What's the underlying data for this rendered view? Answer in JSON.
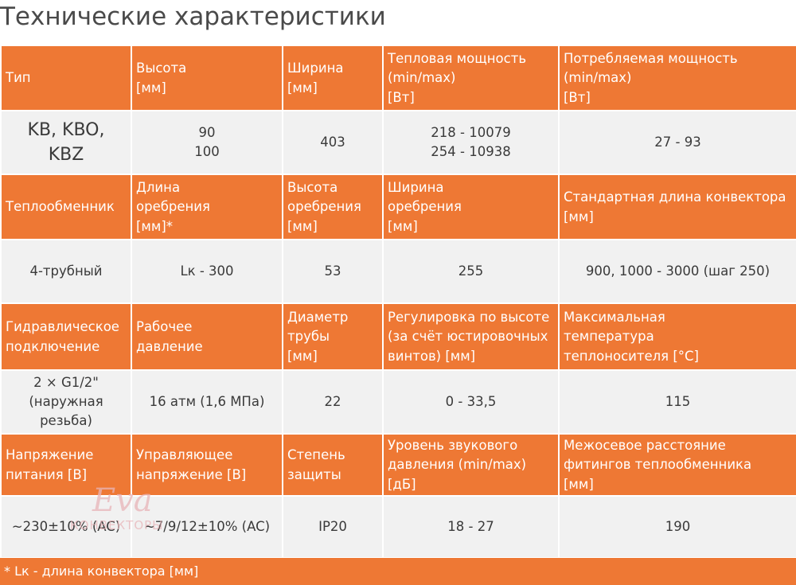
{
  "title": "Технические характеристики",
  "table": {
    "rows": [
      {
        "kind": "header",
        "cells": [
          [
            "Тип"
          ],
          [
            "Высота",
            "[мм]"
          ],
          [
            "Ширина",
            "[мм]"
          ],
          [
            "Тепловая мощность",
            "(min/max)",
            "[Вт]"
          ],
          [
            "Потребляемая мощность",
            "(min/max)",
            "[Вт]"
          ]
        ]
      },
      {
        "kind": "value",
        "cells": [
          [
            "KB, KBO,",
            "KBZ"
          ],
          [
            "90",
            "100"
          ],
          [
            "403"
          ],
          [
            "218 - 10079",
            "254 - 10938"
          ],
          [
            "27 - 93"
          ]
        ]
      },
      {
        "kind": "header",
        "cells": [
          [
            "Теплообменник"
          ],
          [
            "Длина",
            "оребрения",
            "[мм]*"
          ],
          [
            "Высота",
            "оребрения",
            "[мм]"
          ],
          [
            "Ширина",
            "оребрения",
            "[мм]"
          ],
          [
            "Стандартная длина конвектора",
            "[мм]"
          ]
        ]
      },
      {
        "kind": "value",
        "cells": [
          [
            "4-трубный"
          ],
          [
            "Lк - 300"
          ],
          [
            "53"
          ],
          [
            "255"
          ],
          [
            "900, 1000 - 3000 (шаг 250)"
          ]
        ]
      },
      {
        "kind": "header",
        "cells": [
          [
            "Гидравлическое",
            "подключение"
          ],
          [
            "Рабочее",
            "давление"
          ],
          [
            "Диаметр",
            "трубы",
            "[мм]"
          ],
          [
            "Регулировка по высоте",
            "(за счёт юстировочных",
            "винтов) [мм]"
          ],
          [
            "Максимальная",
            "температура",
            "теплоносителя [°C]"
          ]
        ]
      },
      {
        "kind": "value",
        "cells": [
          [
            "2 × G1/2\"",
            "(наружная",
            "резьба)"
          ],
          [
            "16 атм (1,6 МПа)"
          ],
          [
            "22"
          ],
          [
            "0 - 33,5"
          ],
          [
            "115"
          ]
        ]
      },
      {
        "kind": "header",
        "cells": [
          [
            "Напряжение",
            "питания [В]"
          ],
          [
            "Управляющее",
            "напряжение [В]"
          ],
          [
            "Степень",
            "защиты"
          ],
          [
            "Уровень звукового",
            "давления (min/max)",
            "[дБ]"
          ],
          [
            "Межосевое расстояние",
            "фитингов теплообменника",
            "[мм]"
          ]
        ]
      },
      {
        "kind": "value",
        "cells": [
          [
            "~230±10% (AC)"
          ],
          [
            "~7/9/12±10% (AC)"
          ],
          [
            "IP20"
          ],
          [
            "18 - 27"
          ],
          [
            "190"
          ]
        ]
      }
    ]
  },
  "footnote": "* Lк - длина конвектора [мм]",
  "watermark": {
    "script": "Eva",
    "sub": "КОНВЕКТОРЫ"
  },
  "colors": {
    "header_bg": "#ee7834",
    "value_bg": "#f1f1f1",
    "title": "#4a4a4a"
  }
}
